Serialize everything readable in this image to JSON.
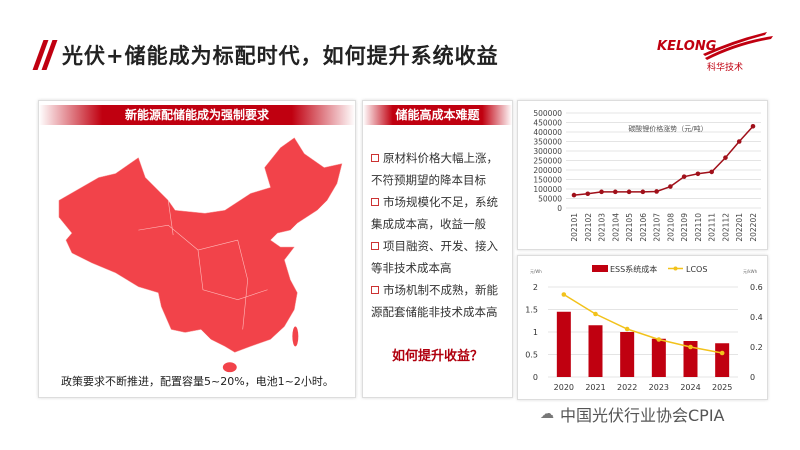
{
  "title": "光伏+储能成为标配时代，如何提升系统收益",
  "logo": {
    "text": "KELONG",
    "subtext": "科华技术"
  },
  "map_panel": {
    "header": "新能源配储能成为强制要求",
    "caption": "政策要求不断推进，配置容量5~20%，电池1~2小时。"
  },
  "cost_panel": {
    "header": "储能高成本难题",
    "items": [
      "原材料价格大幅上涨，不符预期望的降本目标",
      "市场规模化不足，系统集成成本高，收益一般",
      "项目融资、开发、接入等非技术成本高",
      "市场机制不成熟，新能源配套储能非技术成本高"
    ],
    "question": "如何提升收益？"
  },
  "watermark": "中国光伏行业协会CPIA",
  "colors": {
    "brand_red": "#c00010",
    "line_red": "#a0101a",
    "lcos_yellow": "#f2c21b"
  },
  "chart_data": [
    {
      "type": "line",
      "title": "碳酸锂价格涨势（元/吨）",
      "categories": [
        "202101",
        "202102",
        "202103",
        "202104",
        "202105",
        "202106",
        "202107",
        "202108",
        "202109",
        "202110",
        "202111",
        "202112",
        "202201",
        "202202"
      ],
      "values": [
        68000,
        75000,
        85000,
        85000,
        85000,
        85000,
        87000,
        113000,
        165000,
        180000,
        190000,
        265000,
        350000,
        430000
      ],
      "ylim": [
        0,
        500000
      ],
      "yticks": [
        "0",
        "50000",
        "100000",
        "150000",
        "200000",
        "250000",
        "300000",
        "350000",
        "400000",
        "450000",
        "500000"
      ],
      "grid": true
    },
    {
      "type": "bar+line",
      "categories": [
        "2020",
        "2021",
        "2022",
        "2023",
        "2024",
        "2025"
      ],
      "y_left_unit": "元/Wh",
      "y_right_unit": "元/kWh",
      "yticks_left": [
        "0",
        "0.5",
        "1",
        "1.5",
        "2"
      ],
      "yticks_right": [
        "0",
        "0.2",
        "0.4",
        "0.6"
      ],
      "ylim_left": [
        0,
        2
      ],
      "ylim_right": [
        0,
        0.6
      ],
      "legend": "top",
      "grid": true,
      "series": [
        {
          "name": "ESS系统成本",
          "type": "bar",
          "axis": "left",
          "values": [
            1.45,
            1.15,
            1.0,
            0.85,
            0.8,
            0.75
          ]
        },
        {
          "name": "LCOS",
          "type": "line",
          "axis": "right",
          "values": [
            0.55,
            0.42,
            0.32,
            0.25,
            0.2,
            0.16
          ]
        }
      ]
    }
  ]
}
